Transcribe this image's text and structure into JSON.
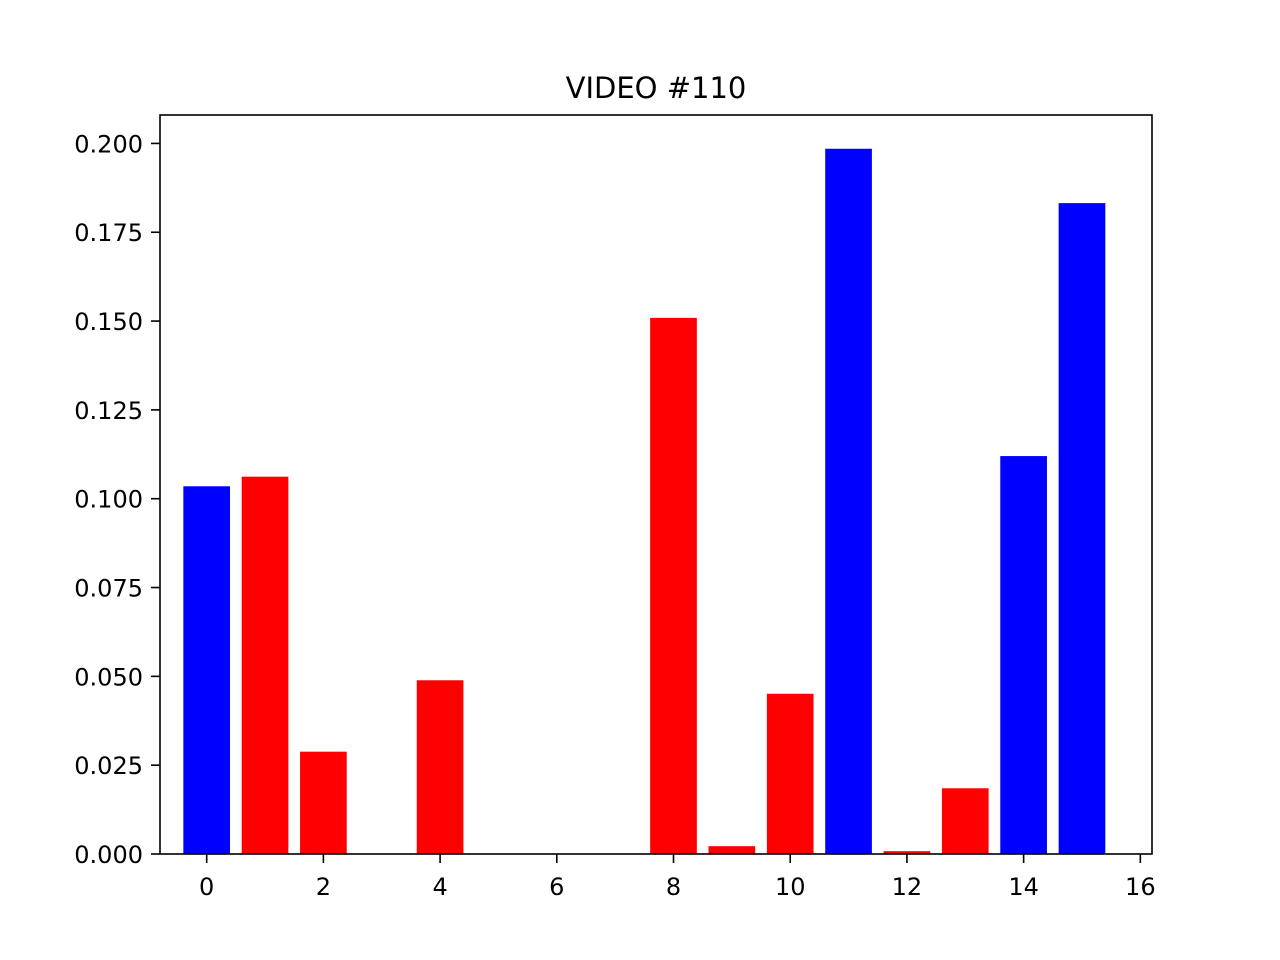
{
  "chart_data": {
    "type": "bar",
    "title": "VIDEO #110",
    "xlabel": "",
    "ylabel": "",
    "x": [
      0,
      1,
      2,
      3,
      4,
      5,
      6,
      7,
      8,
      9,
      10,
      11,
      12,
      13,
      14,
      15
    ],
    "values": [
      0.1035,
      0.1062,
      0.0288,
      0.0,
      0.0489,
      0.0,
      0.0,
      0.0,
      0.1509,
      0.0022,
      0.0451,
      0.1985,
      0.0008,
      0.0185,
      0.112,
      0.1832
    ],
    "bar_colors": [
      "#0000ff",
      "#ff0000",
      "#ff0000",
      "#ff0000",
      "#ff0000",
      "#ff0000",
      "#ff0000",
      "#ff0000",
      "#ff0000",
      "#ff0000",
      "#ff0000",
      "#0000ff",
      "#ff0000",
      "#ff0000",
      "#0000ff",
      "#0000ff"
    ],
    "xlim": [
      -0.8,
      16.2
    ],
    "ylim": [
      0,
      0.208
    ],
    "xticks": [
      0,
      2,
      4,
      6,
      8,
      10,
      12,
      14,
      16
    ],
    "xtick_labels": [
      "0",
      "2",
      "4",
      "6",
      "8",
      "10",
      "12",
      "14",
      "16"
    ],
    "yticks": [
      0,
      0.025,
      0.05,
      0.075,
      0.1,
      0.125,
      0.15,
      0.175,
      0.2
    ],
    "ytick_labels": [
      "0.000",
      "0.025",
      "0.050",
      "0.075",
      "0.100",
      "0.125",
      "0.150",
      "0.175",
      "0.200"
    ],
    "grid": false,
    "legend": "none"
  }
}
